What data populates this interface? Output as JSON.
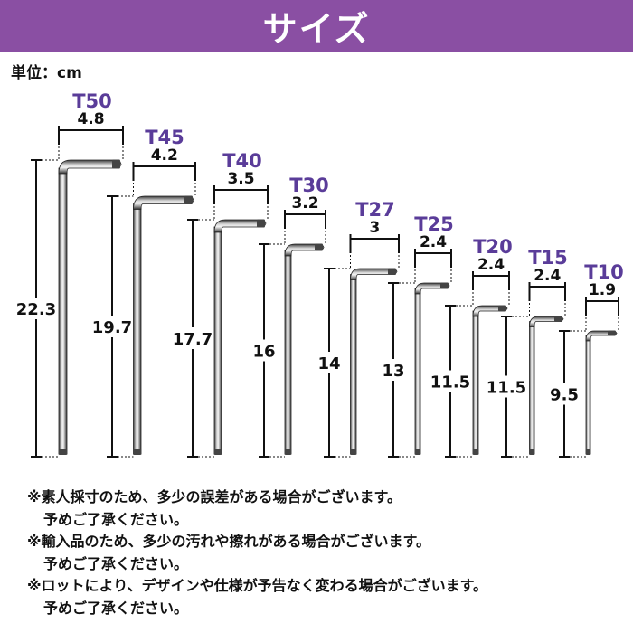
{
  "header": {
    "title": "サイズ"
  },
  "unit": "単位：cm",
  "wrenches": [
    {
      "name": "T50",
      "width": "4.8",
      "length": "22.3"
    },
    {
      "name": "T45",
      "width": "4.2",
      "length": "19.7"
    },
    {
      "name": "T40",
      "width": "3.5",
      "length": "17.7"
    },
    {
      "name": "T30",
      "width": "3.2",
      "length": "16"
    },
    {
      "name": "T27",
      "width": "3",
      "length": "14"
    },
    {
      "name": "T25",
      "width": "2.4",
      "length": "13"
    },
    {
      "name": "T20",
      "width": "2.4",
      "length": "11.5"
    },
    {
      "name": "T15",
      "width": "2.4",
      "length": "11.5"
    },
    {
      "name": "T10",
      "width": "1.9",
      "length": "9.5"
    }
  ],
  "notes": [
    {
      "main": "※素人採寸のため、多少の誤差がある場合がございます。",
      "sub": "予めご了承ください。"
    },
    {
      "main": "※輸入品のため、多少の汚れや擦れがある場合がございます。",
      "sub": "予めご了承ください。"
    },
    {
      "main": "※ロットにより、デザインや仕様が予告なく変わる場合がございます。",
      "sub": "予めご了承ください。"
    }
  ],
  "colors": {
    "banner": "#8a4fa3",
    "model_label": "#5a3c99",
    "dim_line": "#111111"
  }
}
